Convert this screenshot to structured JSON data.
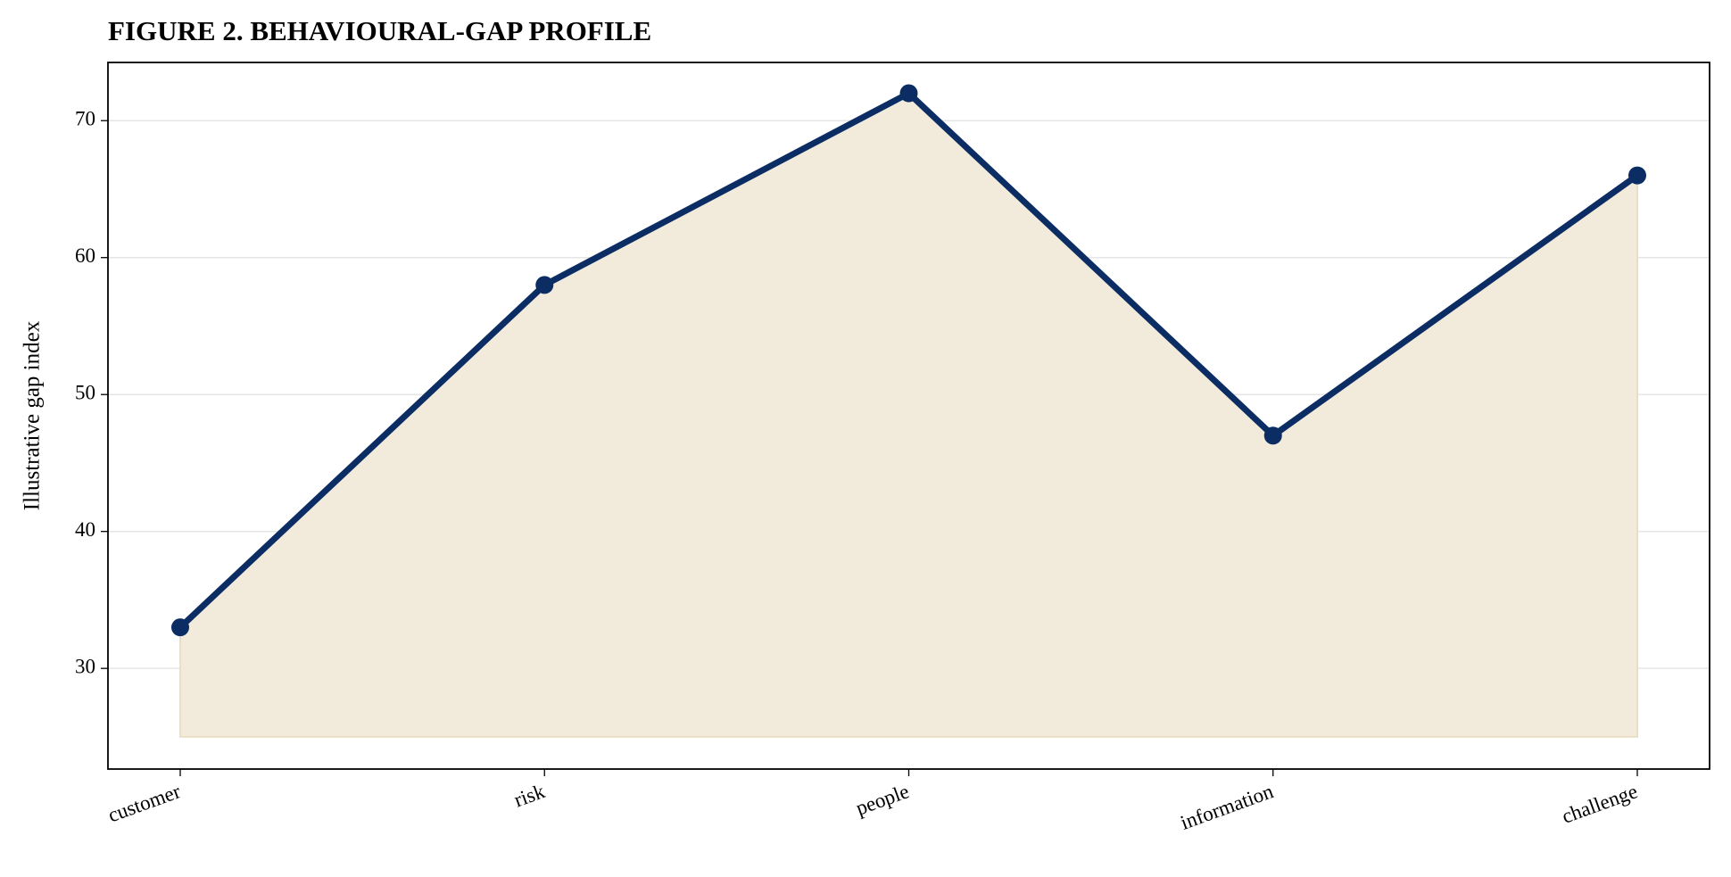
{
  "chart_data": {
    "type": "area-line",
    "title": "FIGURE 2. BEHAVIOURAL-GAP PROFILE",
    "y_label": "Illustrative gap index",
    "categories": [
      "customer",
      "risk",
      "people",
      "information",
      "challenge"
    ],
    "values": [
      33,
      58,
      72,
      47,
      66
    ],
    "color": "#0b2d64",
    "fill_color": "#f2ebdb",
    "area_baseline": 25,
    "ylim": [
      22.65,
      74.25
    ],
    "yticks": [
      30,
      40,
      50,
      60,
      70
    ],
    "grid": true
  }
}
